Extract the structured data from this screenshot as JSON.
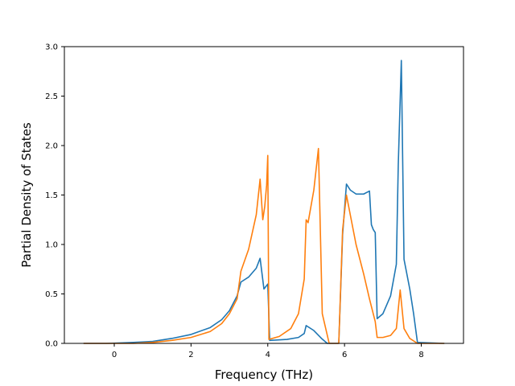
{
  "chart_data": {
    "type": "line",
    "title": "",
    "xlabel": "Frequency (THz)",
    "ylabel": "Partial Density of States",
    "xlim": [
      -1.3,
      9.1
    ],
    "ylim": [
      0.0,
      3.0
    ],
    "xticks": [
      0,
      2,
      4,
      6,
      8
    ],
    "xtick_labels": [
      "0",
      "2",
      "4",
      "6",
      "8"
    ],
    "yticks": [
      0.0,
      0.5,
      1.0,
      1.5,
      2.0,
      2.5,
      3.0
    ],
    "ytick_labels": [
      "0.0",
      "0.5",
      "1.0",
      "1.5",
      "2.0",
      "2.5",
      "3.0"
    ],
    "grid": false,
    "legend": "none",
    "series": [
      {
        "color": "#1f77b4",
        "x": [
          -0.8,
          -0.2,
          0.5,
          1.0,
          1.5,
          2.0,
          2.5,
          2.8,
          3.0,
          3.2,
          3.3,
          3.5,
          3.7,
          3.8,
          3.9,
          4.0,
          4.05,
          4.5,
          4.8,
          4.95,
          5.0,
          5.2,
          5.4,
          5.55,
          5.7,
          5.85,
          5.95,
          6.05,
          6.15,
          6.3,
          6.5,
          6.65,
          6.7,
          6.75,
          6.8,
          6.85,
          7.0,
          7.2,
          7.35,
          7.4,
          7.48,
          7.55,
          7.7,
          7.8,
          7.9,
          8.6
        ],
        "y": [
          0.0,
          0.0,
          0.01,
          0.02,
          0.05,
          0.09,
          0.16,
          0.24,
          0.33,
          0.48,
          0.62,
          0.67,
          0.76,
          0.86,
          0.55,
          0.6,
          0.03,
          0.04,
          0.06,
          0.1,
          0.18,
          0.13,
          0.05,
          0.0,
          0.0,
          0.0,
          1.1,
          1.61,
          1.55,
          1.51,
          1.51,
          1.54,
          1.2,
          1.15,
          1.12,
          0.25,
          0.3,
          0.48,
          0.8,
          1.8,
          2.86,
          0.85,
          0.55,
          0.3,
          0.01,
          0.0
        ]
      },
      {
        "color": "#ff7f0e",
        "x": [
          -0.8,
          -0.2,
          0.5,
          1.0,
          1.5,
          2.0,
          2.5,
          2.8,
          3.0,
          3.2,
          3.3,
          3.5,
          3.7,
          3.8,
          3.87,
          3.92,
          3.97,
          4.0,
          4.03,
          4.3,
          4.6,
          4.8,
          4.95,
          5.0,
          5.05,
          5.2,
          5.32,
          5.42,
          5.6,
          5.7,
          5.85,
          5.95,
          6.05,
          6.3,
          6.5,
          6.65,
          6.8,
          6.85,
          7.0,
          7.2,
          7.35,
          7.45,
          7.55,
          7.7,
          7.9,
          8.6
        ],
        "y": [
          0.0,
          0.0,
          0.0,
          0.01,
          0.03,
          0.06,
          0.12,
          0.2,
          0.3,
          0.45,
          0.73,
          0.95,
          1.3,
          1.66,
          1.25,
          1.38,
          1.6,
          1.9,
          0.04,
          0.07,
          0.15,
          0.3,
          0.65,
          1.25,
          1.22,
          1.55,
          1.97,
          0.3,
          0.0,
          0.0,
          0.0,
          1.15,
          1.5,
          1.0,
          0.7,
          0.45,
          0.22,
          0.06,
          0.06,
          0.08,
          0.15,
          0.54,
          0.15,
          0.05,
          0.0,
          0.0
        ]
      }
    ]
  }
}
